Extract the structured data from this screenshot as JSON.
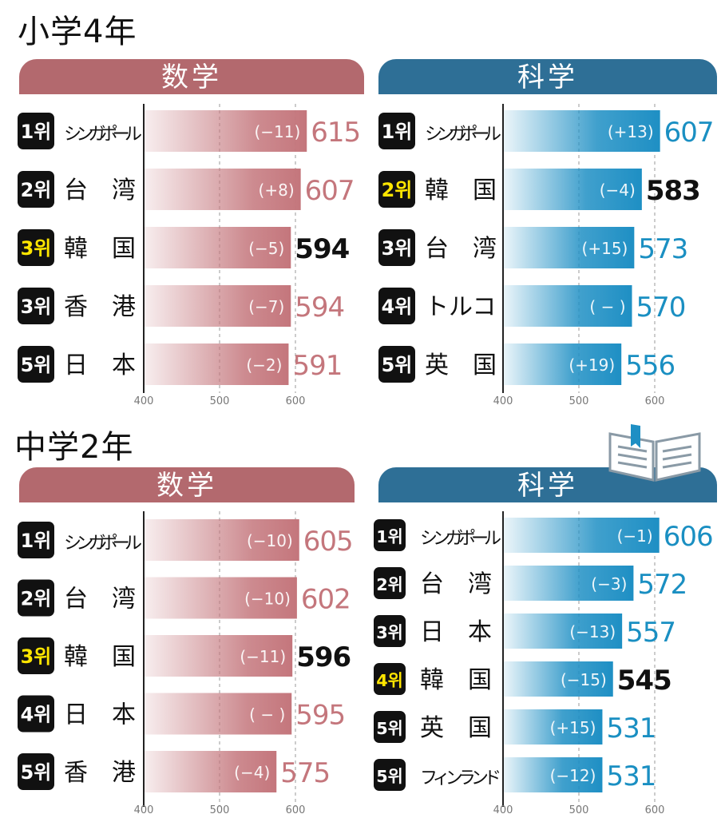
{
  "colors": {
    "math_header": "#b3696e",
    "math_bar": "#c4767c",
    "math_value": "#c4767c",
    "science_header": "#2e6f96",
    "science_bar": "#1e8fc4",
    "science_value": "#1a8fc2",
    "japan_value": "#111111",
    "rank_box": "#111111",
    "rank_text": "#ffffff",
    "japan_rank_text": "#ffe600"
  },
  "sections": [
    {
      "title": "小学4年"
    },
    {
      "title": "中学2年"
    }
  ],
  "chart_data": [
    {
      "type": "bar",
      "section": "小学4年",
      "title": "数学",
      "color": "math",
      "xlim": [
        400,
        620
      ],
      "ticks": [
        400,
        500,
        600
      ],
      "rows": [
        {
          "rank": "1위",
          "country": "シンガポール",
          "change": "(−11)",
          "value": 615,
          "highlight": false
        },
        {
          "rank": "2위",
          "country": "台　湾",
          "change": "(+8)",
          "value": 607,
          "highlight": false
        },
        {
          "rank": "3위",
          "country": "韓　国",
          "change": "(−5)",
          "value": 594,
          "highlight": true
        },
        {
          "rank": "3위",
          "country": "香　港",
          "change": "(−7)",
          "value": 594,
          "highlight": false
        },
        {
          "rank": "5위",
          "country": "日　本",
          "change": "(−2)",
          "value": 591,
          "highlight": false
        }
      ]
    },
    {
      "type": "bar",
      "section": "小学4年",
      "title": "科学",
      "color": "science",
      "xlim": [
        400,
        620
      ],
      "ticks": [
        400,
        500,
        600
      ],
      "rows": [
        {
          "rank": "1위",
          "country": "シンガポール",
          "change": "(+13)",
          "value": 607,
          "highlight": false
        },
        {
          "rank": "2위",
          "country": "韓　国",
          "change": "(−4)",
          "value": 583,
          "highlight": true
        },
        {
          "rank": "3위",
          "country": "台　湾",
          "change": "(+15)",
          "value": 573,
          "highlight": false
        },
        {
          "rank": "4위",
          "country": "トルコ",
          "change": "( − )",
          "value": 570,
          "highlight": false
        },
        {
          "rank": "5위",
          "country": "英　国",
          "change": "(+19)",
          "value": 556,
          "highlight": false
        }
      ]
    },
    {
      "type": "bar",
      "section": "中学2年",
      "title": "数学",
      "color": "math",
      "xlim": [
        400,
        620
      ],
      "ticks": [
        400,
        500,
        600
      ],
      "rows": [
        {
          "rank": "1위",
          "country": "シンガポール",
          "change": "(−10)",
          "value": 605,
          "highlight": false
        },
        {
          "rank": "2위",
          "country": "台　湾",
          "change": "(−10)",
          "value": 602,
          "highlight": false
        },
        {
          "rank": "3위",
          "country": "韓　国",
          "change": "(−11)",
          "value": 596,
          "highlight": true
        },
        {
          "rank": "4위",
          "country": "日　本",
          "change": "( − )",
          "value": 595,
          "highlight": false
        },
        {
          "rank": "5위",
          "country": "香　港",
          "change": "(−4)",
          "value": 575,
          "highlight": false
        }
      ]
    },
    {
      "type": "bar",
      "section": "中学2年",
      "title": "科学",
      "color": "science",
      "xlim": [
        400,
        620
      ],
      "ticks": [
        400,
        500,
        600
      ],
      "rows": [
        {
          "rank": "1위",
          "country": "シンガポール",
          "change": "(−1)",
          "value": 606,
          "highlight": false
        },
        {
          "rank": "2위",
          "country": "台　湾",
          "change": "(−3)",
          "value": 572,
          "highlight": false
        },
        {
          "rank": "3위",
          "country": "日　本",
          "change": "(−13)",
          "value": 557,
          "highlight": false
        },
        {
          "rank": "4위",
          "country": "韓　国",
          "change": "(−15)",
          "value": 545,
          "highlight": true
        },
        {
          "rank": "5위",
          "country": "英　国",
          "change": "(+15)",
          "value": 531,
          "highlight": false
        },
        {
          "rank": "5위",
          "country": "フィンランド",
          "change": "(−12)",
          "value": 531,
          "highlight": false
        }
      ]
    }
  ]
}
